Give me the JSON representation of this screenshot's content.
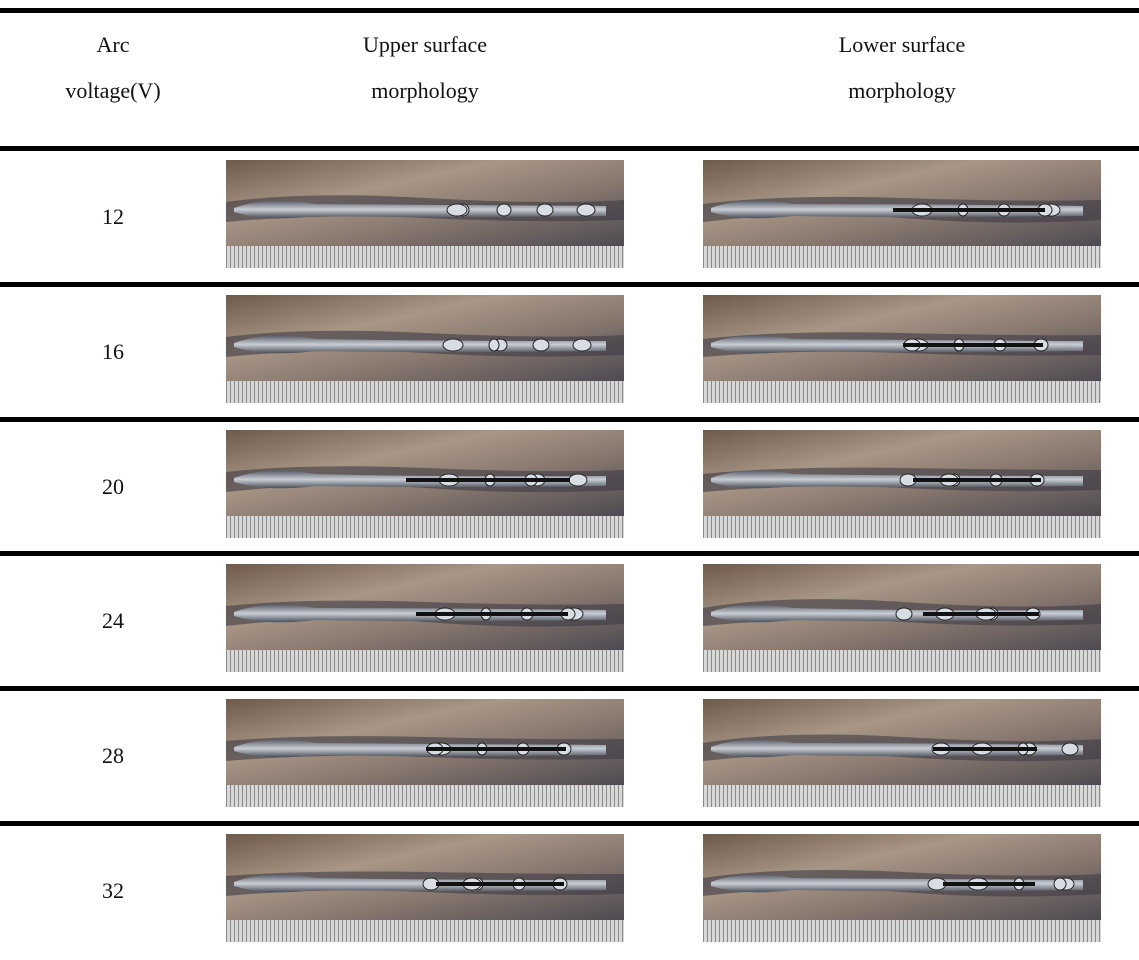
{
  "table": {
    "header": [
      [
        "Arc",
        "voltage(V)"
      ],
      [
        "Upper surface",
        "morphology"
      ],
      [
        "Lower surface",
        "morphology"
      ]
    ],
    "rows": [
      [
        12
      ],
      [
        16
      ],
      [
        20
      ],
      [
        24
      ],
      [
        28
      ],
      [
        32
      ]
    ]
  }
}
